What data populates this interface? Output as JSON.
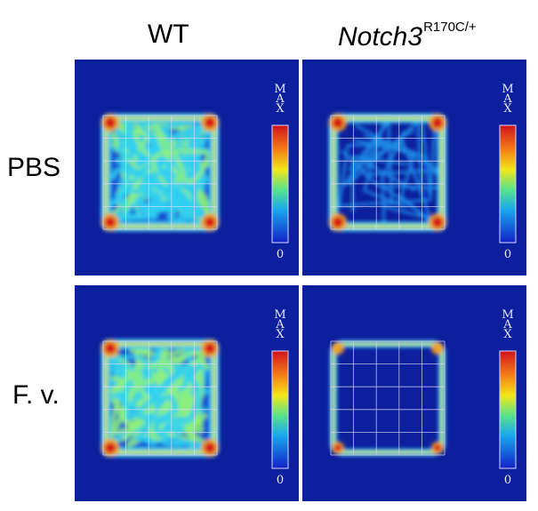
{
  "columns": {
    "wt": "WT",
    "mutant_base": "Notch3",
    "mutant_sup": "R170C/+"
  },
  "rows": {
    "pbs": "PBS",
    "fv": "F. v."
  },
  "colorbar": {
    "max_label": "MAX",
    "min_label": "0"
  },
  "panels": [
    {
      "id": "pbs-wt",
      "pattern": "dense-center"
    },
    {
      "id": "pbs-mutant",
      "pattern": "thin-paths"
    },
    {
      "id": "fv-wt",
      "pattern": "dense-center"
    },
    {
      "id": "fv-mutant",
      "pattern": "perimeter-only"
    }
  ],
  "colors": {
    "background_blue": "#0c1f9c",
    "heat_high": "#d8191c",
    "heat_mid": "#f7e91c",
    "heat_low": "#1ea9f0",
    "grid": "#dcdcff"
  }
}
